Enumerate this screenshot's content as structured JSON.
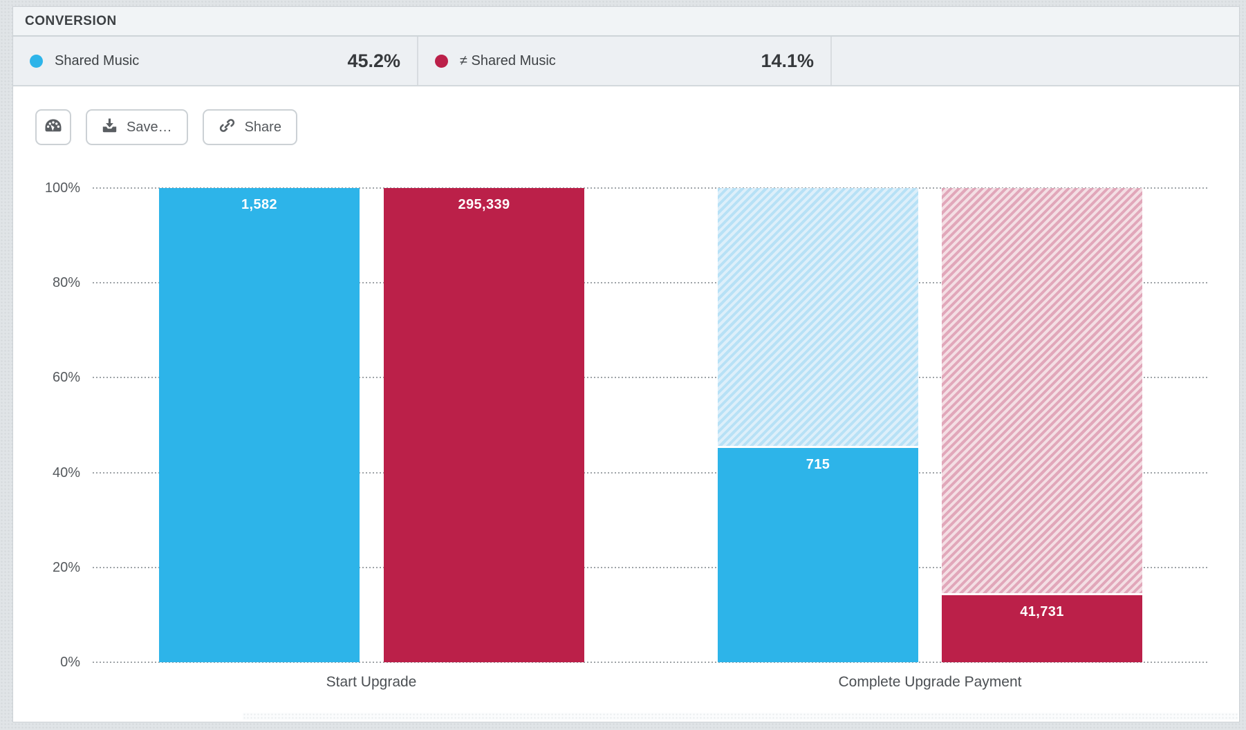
{
  "header": {
    "title": "CONVERSION"
  },
  "legend": [
    {
      "label": "Shared Music",
      "value": "45.2%",
      "color": "#2db4e9"
    },
    {
      "label": "≠ Shared Music",
      "value": "14.1%",
      "color": "#bb2049"
    }
  ],
  "toolbar": {
    "gauge_icon": "gauge-icon",
    "save_label": "Save…",
    "share_label": "Share"
  },
  "chart_data": {
    "type": "bar",
    "title": "CONVERSION",
    "categories": [
      "Start Upgrade",
      "Complete Upgrade Payment"
    ],
    "series": [
      {
        "name": "Shared Music",
        "color": "#2db4e9",
        "hatch_bg": "#ddeffa",
        "hatch_stripe": "#b7e1f6",
        "values": [
          {
            "count": "1,582",
            "pct": 100
          },
          {
            "count": "715",
            "pct": 45.2
          }
        ]
      },
      {
        "name": "≠ Shared Music",
        "color": "#bb2049",
        "hatch_bg": "#f4dee4",
        "hatch_stripe": "#e1a7ba",
        "values": [
          {
            "count": "295,339",
            "pct": 100
          },
          {
            "count": "41,731",
            "pct": 14.1
          }
        ]
      }
    ],
    "yticks": [
      "100%",
      "80%",
      "60%",
      "40%",
      "20%",
      "0%"
    ],
    "ylim": [
      0,
      100
    ],
    "ylabel": "",
    "xlabel": "",
    "grid": "dotted-horizontal",
    "legend_position": "top"
  }
}
